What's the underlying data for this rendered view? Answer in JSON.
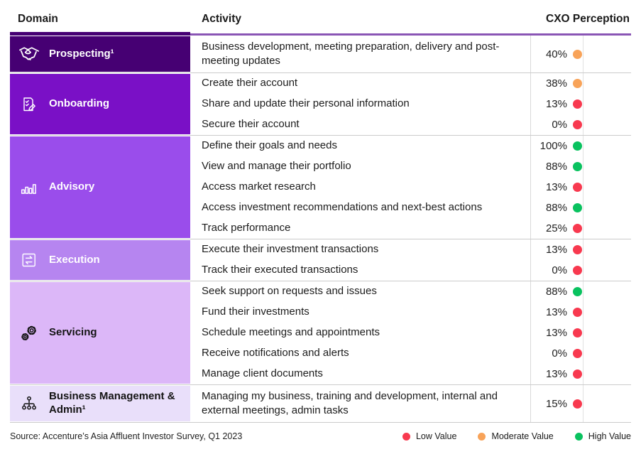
{
  "chart_data": {
    "type": "table",
    "header": {
      "domain": "Domain",
      "activity": "Activity",
      "perception": "CXO Perception"
    },
    "accent_colors": {
      "rule_dark": "#460073",
      "rule_light": "#8a55b5",
      "separator": "#cbcbcb"
    },
    "rating_colors": {
      "low": "#f8394f",
      "moderate": "#f8a359",
      "high": "#09c25f"
    },
    "groups": [
      {
        "name": "Prospecting¹",
        "icon": "handshake-icon",
        "bg": "#460073",
        "text_color": "#ffffff",
        "activities": [
          {
            "label": "Business development, meeting preparation, delivery and post-meeting updates",
            "value": "40%",
            "rating": "moderate"
          }
        ]
      },
      {
        "name": "Onboarding",
        "icon": "onboarding-document-icon",
        "bg": "#7a10c6",
        "text_color": "#ffffff",
        "activities": [
          {
            "label": "Create their account",
            "value": "38%",
            "rating": "moderate"
          },
          {
            "label": "Share and update their personal information",
            "value": "13%",
            "rating": "low"
          },
          {
            "label": "Secure their account",
            "value": "0%",
            "rating": "low"
          }
        ]
      },
      {
        "name": "Advisory",
        "icon": "bar-chart-icon",
        "bg": "#9a4deb",
        "text_color": "#ffffff",
        "activities": [
          {
            "label": "Define their goals and needs",
            "value": "100%",
            "rating": "high"
          },
          {
            "label": "View and manage their portfolio",
            "value": "88%",
            "rating": "high"
          },
          {
            "label": "Access market research",
            "value": "13%",
            "rating": "low"
          },
          {
            "label": "Access investment recommendations and next-best actions",
            "value": "88%",
            "rating": "high"
          },
          {
            "label": "Track performance",
            "value": "25%",
            "rating": "low"
          }
        ]
      },
      {
        "name": "Execution",
        "icon": "swap-arrows-icon",
        "bg": "#b685f0",
        "text_color": "#ffffff",
        "activities": [
          {
            "label": "Execute their investment transactions",
            "value": "13%",
            "rating": "low"
          },
          {
            "label": "Track their executed transactions",
            "value": "0%",
            "rating": "low"
          }
        ]
      },
      {
        "name": "Servicing",
        "icon": "gears-icon",
        "bg": "#dcb7f8",
        "text_color": "#141414",
        "activities": [
          {
            "label": "Seek support on requests and issues",
            "value": "88%",
            "rating": "high"
          },
          {
            "label": "Fund their investments",
            "value": "13%",
            "rating": "low"
          },
          {
            "label": "Schedule meetings and appointments",
            "value": "13%",
            "rating": "low"
          },
          {
            "label": "Receive notifications and alerts",
            "value": "0%",
            "rating": "low"
          },
          {
            "label": "Manage client documents",
            "value": "13%",
            "rating": "low"
          }
        ]
      },
      {
        "name": "Business Management & Admin¹",
        "icon": "org-chart-icon",
        "bg": "#e9dffa",
        "text_color": "#141414",
        "activities": [
          {
            "label": "Managing my business, training and development, internal and external meetings, admin tasks",
            "value": "15%",
            "rating": "low"
          }
        ]
      }
    ],
    "legend": [
      {
        "label": "Low Value",
        "rating": "low"
      },
      {
        "label": "Moderate Value",
        "rating": "moderate"
      },
      {
        "label": "High Value",
        "rating": "high"
      }
    ],
    "source": "Source: Accenture’s Asia Affluent Investor Survey, Q1 2023"
  }
}
